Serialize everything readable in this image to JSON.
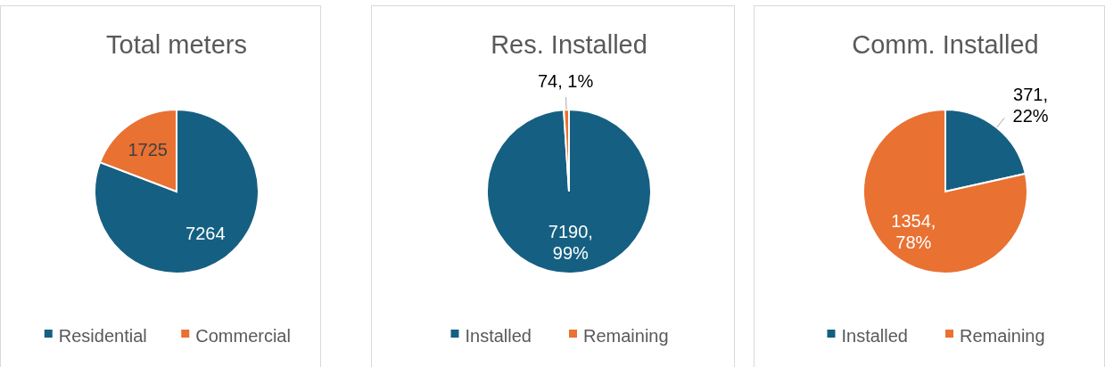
{
  "chart_data": [
    {
      "type": "pie",
      "title": "Total meters",
      "categories": [
        "Residential",
        "Commercial"
      ],
      "values": [
        7264,
        1725
      ],
      "colors": [
        "#156082",
        "#e97132"
      ],
      "value_labels": [
        "7264",
        "1725"
      ],
      "legend": "bottom"
    },
    {
      "type": "pie",
      "title": "Res. Installed",
      "categories": [
        "Installed",
        "Remaining"
      ],
      "values": [
        7190,
        74
      ],
      "colors": [
        "#156082",
        "#e97132"
      ],
      "value_labels": [
        "7190, 99%",
        "74, 1%"
      ],
      "legend": "bottom"
    },
    {
      "type": "pie",
      "title": "Comm. Installed",
      "categories": [
        "Installed",
        "Remaining"
      ],
      "values": [
        371,
        1354
      ],
      "colors": [
        "#156082",
        "#e97132"
      ],
      "value_labels": [
        "371, 22%",
        "1354, 78%"
      ],
      "legend": "bottom"
    }
  ]
}
